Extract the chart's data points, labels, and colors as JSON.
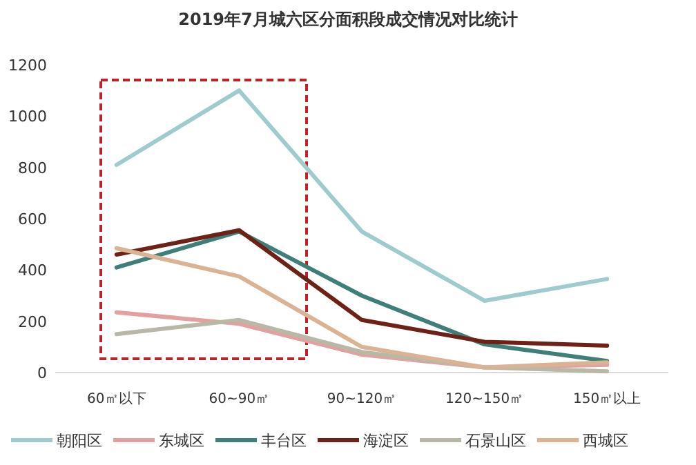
{
  "chart_data": {
    "type": "line",
    "title": "2019年7月城六区分面积段成交情况对比统计",
    "categories": [
      "60㎡以下",
      "60~90㎡",
      "90~120㎡",
      "120~150㎡",
      "150㎡以上"
    ],
    "series": [
      {
        "name": "朝阳区",
        "color": "#9fcbcf",
        "values": [
          810,
          1100,
          550,
          280,
          365
        ]
      },
      {
        "name": "东城区",
        "color": "#e3a0a0",
        "values": [
          235,
          190,
          70,
          20,
          30
        ]
      },
      {
        "name": "丰台区",
        "color": "#3f7f7a",
        "values": [
          410,
          550,
          300,
          110,
          45
        ]
      },
      {
        "name": "海淀区",
        "color": "#6e2217",
        "values": [
          460,
          555,
          205,
          120,
          105
        ]
      },
      {
        "name": "石景山区",
        "color": "#b9b7a6",
        "values": [
          150,
          205,
          80,
          20,
          5
        ]
      },
      {
        "name": "西城区",
        "color": "#d9b393",
        "values": [
          485,
          375,
          100,
          20,
          40
        ]
      }
    ],
    "ylim": [
      0,
      1200
    ],
    "yticks": [
      0,
      200,
      400,
      600,
      800,
      1000,
      1200
    ],
    "grid": false,
    "legend": "bottom",
    "marker": "none",
    "line_style": "solid"
  }
}
